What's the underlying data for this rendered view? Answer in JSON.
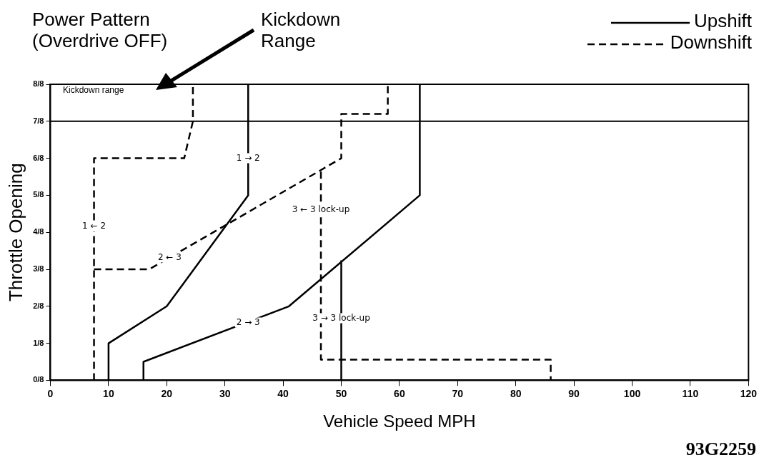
{
  "chart_data": {
    "type": "line",
    "title": "Power Pattern (Overdrive OFF)",
    "xlabel": "Vehicle Speed MPH",
    "ylabel": "Throttle Opening",
    "xlim": [
      0,
      120
    ],
    "xticks": [
      0,
      10,
      20,
      30,
      40,
      50,
      60,
      70,
      80,
      90,
      100,
      110,
      120
    ],
    "ylim": [
      0,
      1
    ],
    "yticks": [
      {
        "value": 0,
        "label": "0/8"
      },
      {
        "value": 0.125,
        "label": "1/8"
      },
      {
        "value": 0.25,
        "label": "2/8"
      },
      {
        "value": 0.375,
        "label": "3/8"
      },
      {
        "value": 0.5,
        "label": "4/8"
      },
      {
        "value": 0.625,
        "label": "5/8"
      },
      {
        "value": 0.75,
        "label": "6/8"
      },
      {
        "value": 0.875,
        "label": "7/8"
      },
      {
        "value": 1,
        "label": "8/8"
      }
    ],
    "grid": false,
    "legend": "top right",
    "marker": "none",
    "series": [
      {
        "name": "Upshift",
        "color": "#000000",
        "line_style": "solid",
        "x": [
          10,
          10,
          20,
          34,
          34,
          null,
          16,
          16,
          41,
          63.5,
          63.5,
          null,
          50,
          50
        ],
        "values": [
          0,
          0.125,
          0.25,
          0.625,
          1,
          null,
          0,
          0.0625,
          0.25,
          0.625,
          1,
          null,
          0,
          0.405
        ]
      },
      {
        "name": "Downshift",
        "color": "#000000",
        "line_style": "dashed",
        "x": [
          7.5,
          7.5,
          23,
          24.5,
          24.5,
          null,
          7.5,
          17,
          50,
          50,
          58,
          58,
          null,
          46.5,
          46.5,
          86,
          86
        ],
        "values": [
          0,
          0.75,
          0.75,
          0.875,
          1,
          null,
          0.375,
          0.375,
          0.75,
          0.9,
          0.9,
          1,
          null,
          0.705,
          0.07,
          0.07,
          0
        ]
      }
    ],
    "ref_lines": [
      {
        "axis": "y",
        "value": 0.875,
        "color": "#000000"
      }
    ],
    "annotations": [
      "Kickdown Range",
      "Kickdown range",
      {
        "text": "1 → 2",
        "x": 34,
        "y": 0.75
      },
      {
        "text": "1 ← 2",
        "x": 7.5,
        "y": 0.52
      },
      {
        "text": "2 ← 3",
        "x": 20.5,
        "y": 0.415
      },
      {
        "text": "3 ← 3 lock-up",
        "x": 46.5,
        "y": 0.575
      },
      {
        "text": "2 → 3",
        "x": 34,
        "y": 0.195
      },
      {
        "text": "3 → 3 lock-up",
        "x": 50,
        "y": 0.21
      },
      "93G2259"
    ]
  }
}
